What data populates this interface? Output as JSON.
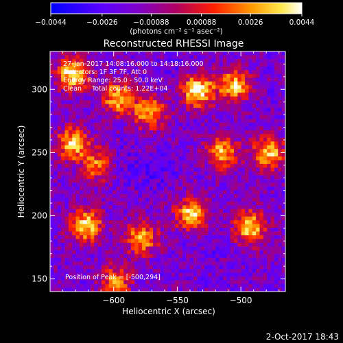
{
  "colorbar": {
    "ticks": [
      "−0.0044",
      "−0.0026",
      "−0.00088",
      "0.00088",
      "0.0026",
      "0.0044"
    ],
    "tick_values": [
      -0.0044,
      -0.0026,
      -0.00088,
      0.00088,
      0.0026,
      0.0044
    ],
    "range": [
      -0.0044,
      0.0044
    ],
    "unit": "(photons cm⁻² s⁻¹ asec⁻²)"
  },
  "title": "Reconstructed RHESSI Image",
  "info": {
    "line1": "27-Jan-2017 14:08:16.000 to 14:18:16.000",
    "line2": "Detectors: 1F 3F 7F, Att 0",
    "line3": "Energy Range: 25.0 - 50.0 keV",
    "line4": "Clean     Total counts: 1.22E+04"
  },
  "peak_text": "Position of Peak = [-500,294]",
  "xlabel": "Heliocentric X (arcsec)",
  "ylabel": "Heliocentric Y (arcsec)",
  "timestamp": "2-Oct-2017 18:43",
  "chart_data": {
    "type": "heatmap",
    "title": "Reconstructed RHESSI Image",
    "xlabel": "Heliocentric X (arcsec)",
    "ylabel": "Heliocentric Y (arcsec)",
    "xlim": [
      -650,
      -465
    ],
    "ylim": [
      140,
      330
    ],
    "xticks": [
      -600,
      -550,
      -500
    ],
    "xtick_labels": [
      "−600",
      "−550",
      "−500"
    ],
    "yticks": [
      150,
      200,
      250,
      300
    ],
    "ytick_labels": [
      "150",
      "200",
      "250",
      "300"
    ],
    "value_range": [
      -0.0044,
      0.0044
    ],
    "colormap": "blue-purple-red-yellow-white",
    "peak": {
      "x": -500,
      "y": 294
    },
    "grid": false,
    "hot_regions": [
      {
        "x": -632,
        "y": 312,
        "value": 0.0042
      },
      {
        "x": -632,
        "y": 257,
        "value": 0.0036
      },
      {
        "x": -622,
        "y": 192,
        "value": 0.0038
      },
      {
        "x": -597,
        "y": 293,
        "value": 0.0032
      },
      {
        "x": -578,
        "y": 182,
        "value": 0.003
      },
      {
        "x": -572,
        "y": 282,
        "value": 0.003
      },
      {
        "x": -534,
        "y": 299,
        "value": 0.0044
      },
      {
        "x": -539,
        "y": 201,
        "value": 0.0036
      },
      {
        "x": -515,
        "y": 250,
        "value": 0.003
      },
      {
        "x": -505,
        "y": 303,
        "value": 0.0034
      },
      {
        "x": -493,
        "y": 191,
        "value": 0.0038
      },
      {
        "x": -478,
        "y": 250,
        "value": 0.0034
      },
      {
        "x": -598,
        "y": 148,
        "value": 0.0022
      },
      {
        "x": -612,
        "y": 240,
        "value": 0.0024
      }
    ],
    "cold_regions": [
      {
        "x": -598,
        "y": 240,
        "value": -0.003
      },
      {
        "x": -567,
        "y": 236,
        "value": -0.0028
      },
      {
        "x": -549,
        "y": 320,
        "value": -0.0024
      },
      {
        "x": -519,
        "y": 180,
        "value": -0.0022
      },
      {
        "x": -558,
        "y": 180,
        "value": -0.0018
      }
    ]
  }
}
